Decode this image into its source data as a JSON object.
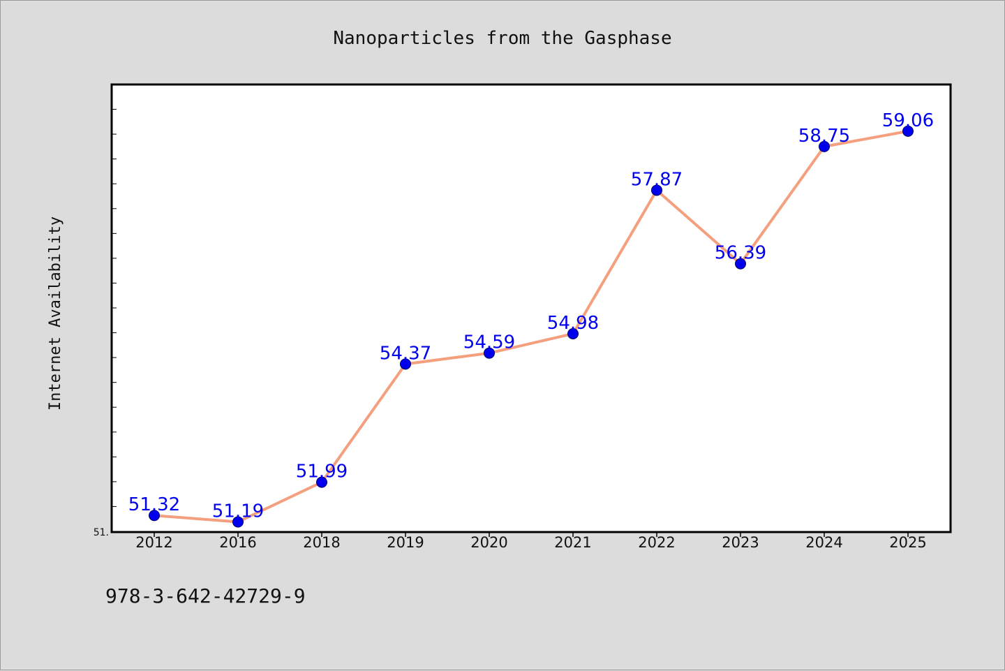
{
  "chart_data": {
    "type": "line",
    "title": "Nanoparticles from the Gasphase",
    "xlabel": "",
    "ylabel": "Internet Availability",
    "categories": [
      "2012",
      "2016",
      "2018",
      "2019",
      "2020",
      "2021",
      "2022",
      "2023",
      "2024",
      "2025"
    ],
    "values": [
      51.32,
      51.19,
      51.99,
      54.37,
      54.59,
      54.98,
      57.87,
      56.39,
      58.75,
      59.06
    ],
    "data_labels": [
      "51.32",
      "51.19",
      "51.99",
      "54.37",
      "54.59",
      "54.98",
      "57.87",
      "56.39",
      "58.75",
      "59.06"
    ],
    "y_tick_label": "51.",
    "ylim": [
      51.0,
      60.0
    ],
    "grid": false,
    "legend": "none",
    "line_color": "#f4a07e",
    "marker_color": "#0000ee",
    "label_color": "#0000ee"
  },
  "footer": {
    "isbn": "978-3-642-42729-9"
  }
}
